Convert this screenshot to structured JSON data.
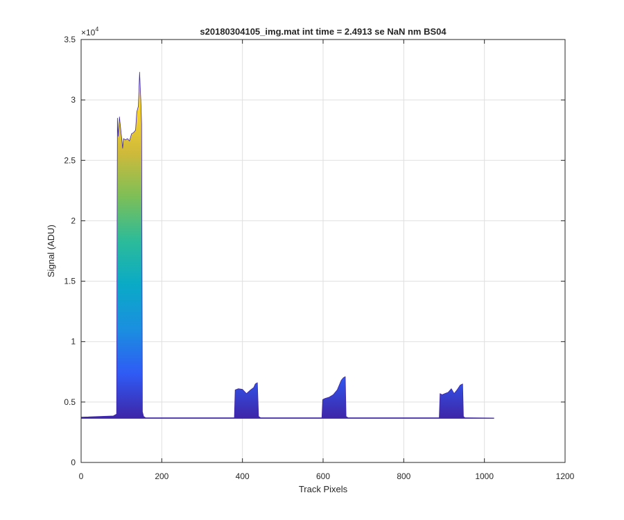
{
  "chart_data": {
    "type": "area",
    "title": "s20180304105_img.mat int time = 2.4913 se  NaN nm BS04",
    "xlabel": "Track Pixels",
    "ylabel": "Signal (ADU)",
    "xlim": [
      0,
      1200
    ],
    "ylim": [
      0,
      35000
    ],
    "xticks": [
      0,
      200,
      400,
      600,
      800,
      1000,
      1200
    ],
    "xtick_labels": [
      "0",
      "200",
      "400",
      "600",
      "800",
      "1000",
      "1200"
    ],
    "yticks": [
      0,
      5000,
      10000,
      15000,
      20000,
      25000,
      30000,
      35000
    ],
    "ytick_labels": [
      "0",
      "0.5",
      "1",
      "1.5",
      "2",
      "2.5",
      "3",
      "3.5"
    ],
    "y_exponent_label": "×10",
    "y_exponent_power": "4",
    "grid": true,
    "colormap": [
      "#3e26a8",
      "#2f5bf5",
      "#1b8fdf",
      "#0aaac7",
      "#2cbb99",
      "#7dbf57",
      "#d0ba3a",
      "#fad42e",
      "#f9fb15"
    ],
    "series": [
      {
        "x": [
          0,
          80,
          88,
          90,
          92,
          95,
          100,
          103,
          105,
          110,
          115,
          120,
          125,
          130,
          135,
          138,
          142,
          145,
          148,
          150,
          152,
          155,
          160,
          380,
          382,
          390,
          400,
          410,
          420,
          428,
          432,
          437,
          440,
          445,
          450,
          597,
          599,
          605,
          615,
          625,
          635,
          645,
          650,
          655,
          657,
          662,
          670,
          888,
          890,
          895,
          902,
          910,
          918,
          925,
          932,
          940,
          946,
          948,
          952,
          960,
          1024
        ],
        "y": [
          3750,
          3850,
          4000,
          28500,
          27000,
          28600,
          27000,
          26000,
          26800,
          26700,
          26800,
          26600,
          27200,
          27300,
          27500,
          29000,
          29500,
          32300,
          30000,
          28000,
          4200,
          3800,
          3700,
          3700,
          6000,
          6100,
          6050,
          5700,
          6000,
          6200,
          6500,
          6600,
          3800,
          3700,
          3700,
          3700,
          5200,
          5300,
          5400,
          5600,
          6000,
          6800,
          7000,
          7100,
          3800,
          3700,
          3700,
          3700,
          5700,
          5600,
          5700,
          5800,
          6100,
          5700,
          6000,
          6400,
          6500,
          3800,
          3700,
          3700,
          3680
        ]
      }
    ]
  }
}
